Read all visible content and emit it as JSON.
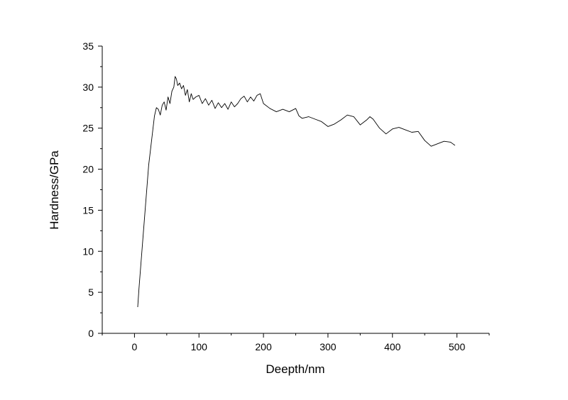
{
  "chart_data": {
    "type": "line",
    "title": "",
    "xlabel": "Deepth/nm",
    "ylabel": "Hardness/GPa",
    "xlim": [
      -50,
      550
    ],
    "ylim": [
      0,
      35
    ],
    "xticks": [
      0,
      100,
      200,
      300,
      400,
      500
    ],
    "yticks": [
      0,
      5,
      10,
      15,
      20,
      25,
      30,
      35
    ],
    "grid": false,
    "legend": "none",
    "line_color": "#000000",
    "series": [
      {
        "x": [
          5,
          7,
          10,
          13,
          16,
          19,
          22,
          25,
          28,
          31,
          34,
          37,
          40,
          43,
          46,
          49,
          52,
          55,
          58,
          61,
          63,
          65,
          67,
          70,
          73,
          76,
          79,
          82,
          85,
          88,
          91,
          95,
          100,
          105,
          110,
          115,
          120,
          125,
          130,
          135,
          140,
          145,
          150,
          155,
          160,
          165,
          170,
          175,
          180,
          185,
          190,
          195,
          200,
          210,
          220,
          230,
          240,
          250,
          255,
          260,
          270,
          280,
          290,
          300,
          310,
          320,
          330,
          340,
          350,
          360,
          365,
          370,
          380,
          390,
          400,
          410,
          420,
          430,
          440,
          450,
          460,
          470,
          480,
          490,
          497
        ],
        "y": [
          3.2,
          5.5,
          8.5,
          11.5,
          14.5,
          17.5,
          20.5,
          22.5,
          24.5,
          26.5,
          27.5,
          27.3,
          26.6,
          27.8,
          28.2,
          27.2,
          28.8,
          28.0,
          29.5,
          30.0,
          31.3,
          31.0,
          30.2,
          30.5,
          29.8,
          30.2,
          29.0,
          29.7,
          28.2,
          29.2,
          28.5,
          28.8,
          29.0,
          28.0,
          28.6,
          27.8,
          28.4,
          27.4,
          28.1,
          27.5,
          28.0,
          27.3,
          28.2,
          27.6,
          28.0,
          28.6,
          28.9,
          28.2,
          28.8,
          28.3,
          29.0,
          29.2,
          28.0,
          27.4,
          27.0,
          27.3,
          27.0,
          27.4,
          26.5,
          26.2,
          26.4,
          26.1,
          25.8,
          25.2,
          25.5,
          26.0,
          26.6,
          26.4,
          25.4,
          26.0,
          26.4,
          26.1,
          25.0,
          24.3,
          24.9,
          25.1,
          24.8,
          24.5,
          24.6,
          23.5,
          22.8,
          23.1,
          23.4,
          23.3,
          22.9
        ]
      }
    ]
  }
}
